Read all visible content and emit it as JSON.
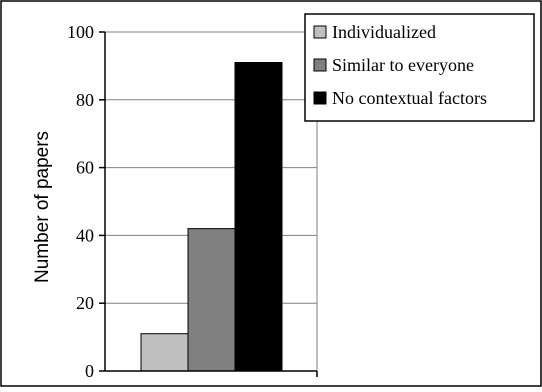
{
  "chart_data": {
    "type": "bar",
    "title": "",
    "xlabel": "",
    "ylabel": "Number of papers",
    "ylim": [
      0,
      100
    ],
    "yticks": [
      0,
      20,
      40,
      60,
      80,
      100
    ],
    "grid": true,
    "legend_position": "top-right",
    "series": [
      {
        "name": "Individualized",
        "value": 11,
        "color": "#c0c0c0"
      },
      {
        "name": "Similar to everyone",
        "value": 42,
        "color": "#808080"
      },
      {
        "name": "No contextual factors",
        "value": 91,
        "color": "#000000"
      }
    ]
  }
}
